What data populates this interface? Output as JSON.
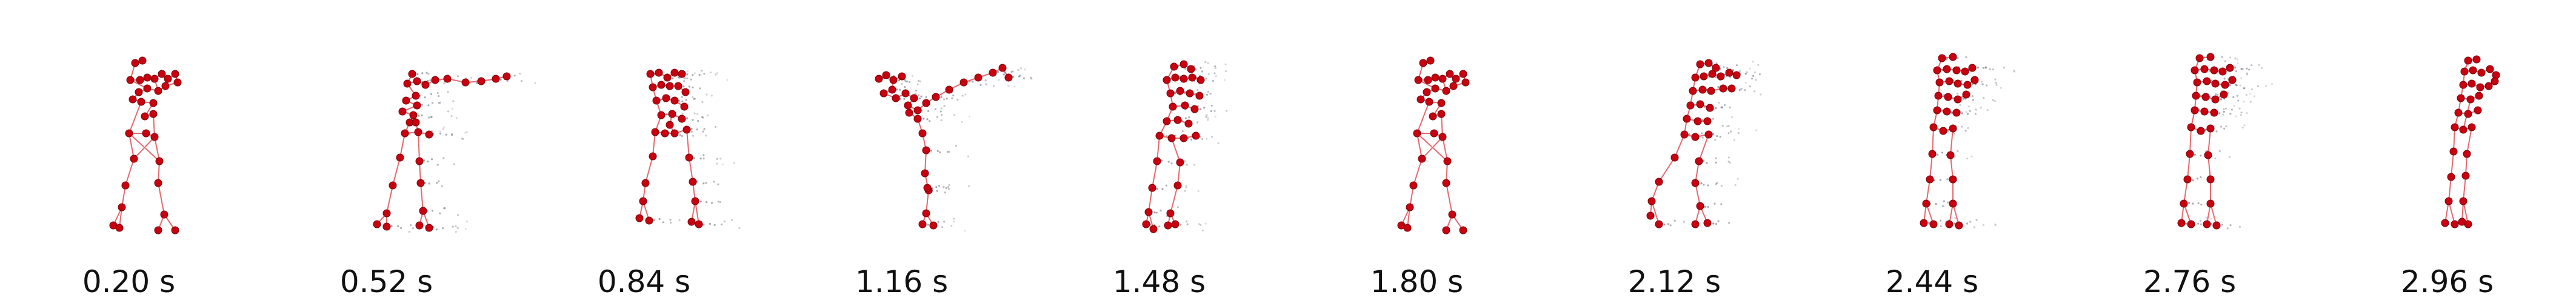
{
  "figure": {
    "colors": {
      "skeleton": "#c8000f",
      "edge": "#e56a6f",
      "trail": "#6f7380"
    },
    "frames": [
      {
        "time_label": "0.20 s",
        "pose": "standing-arms-raised"
      },
      {
        "time_label": "0.52 s",
        "pose": "standing-arm-extended"
      },
      {
        "time_label": "0.84 s",
        "pose": "crouch"
      },
      {
        "time_label": "1.16 s",
        "pose": "lean-arm-extended"
      },
      {
        "time_label": "1.48 s",
        "pose": "crouch-trailing"
      },
      {
        "time_label": "1.80 s",
        "pose": "standing-arms-raised"
      },
      {
        "time_label": "2.12 s",
        "pose": "stride-trailing"
      },
      {
        "time_label": "2.44 s",
        "pose": "upright-trailing"
      },
      {
        "time_label": "2.76 s",
        "pose": "upright-trailing"
      },
      {
        "time_label": "2.96 s",
        "pose": "upright"
      }
    ]
  }
}
